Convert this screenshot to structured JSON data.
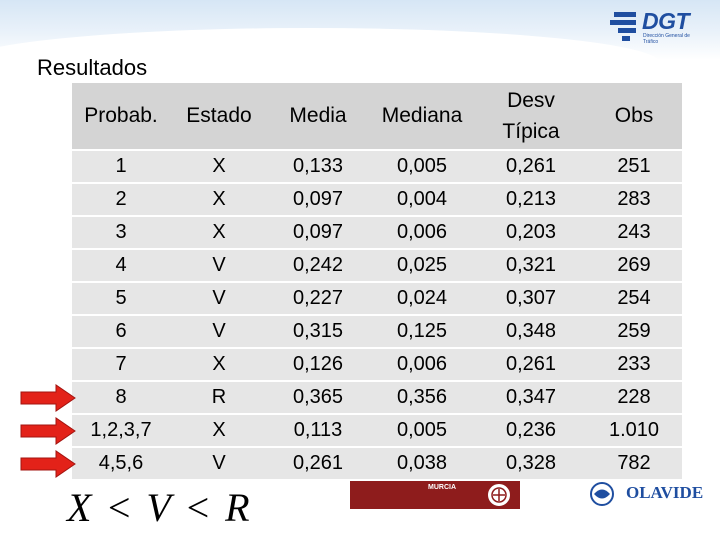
{
  "header": {
    "logo_text": "DGT",
    "logo_sub": "Dirección General de Tráfico"
  },
  "title": "Resultados",
  "table": {
    "columns": [
      "Probab.",
      "Estado",
      "Media",
      "Mediana",
      "Desv Típica",
      "Obs"
    ],
    "rows": [
      [
        "1",
        "X",
        "0,133",
        "0,005",
        "0,261",
        "251"
      ],
      [
        "2",
        "X",
        "0,097",
        "0,004",
        "0,213",
        "283"
      ],
      [
        "3",
        "X",
        "0,097",
        "0,006",
        "0,203",
        "243"
      ],
      [
        "4",
        "V",
        "0,242",
        "0,025",
        "0,321",
        "269"
      ],
      [
        "5",
        "V",
        "0,227",
        "0,024",
        "0,307",
        "254"
      ],
      [
        "6",
        "V",
        "0,315",
        "0,125",
        "0,348",
        "259"
      ],
      [
        "7",
        "X",
        "0,126",
        "0,006",
        "0,261",
        "233"
      ],
      [
        "8",
        "R",
        "0,365",
        "0,356",
        "0,347",
        "228"
      ],
      [
        "1,2,3,7",
        "X",
        "0,113",
        "0,005",
        "0,236",
        "1.010"
      ],
      [
        "4,5,6",
        "V",
        "0,261",
        "0,038",
        "0,328",
        "782"
      ]
    ],
    "highlighted_rows": [
      7,
      8,
      9
    ],
    "arrow_color": "#e32219"
  },
  "formula": "X < V < R",
  "footer_logos": {
    "left_text": "MURCIA",
    "right_text": "OLAVIDE"
  }
}
